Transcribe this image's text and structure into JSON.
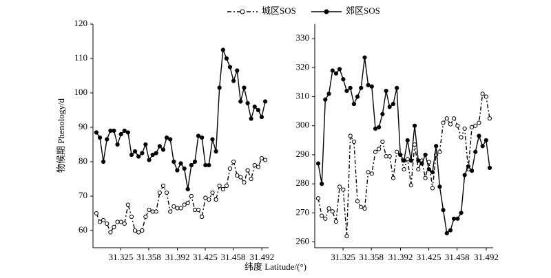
{
  "chart_data": [
    {
      "type": "line",
      "ylabel": "物候期 Phenology/d",
      "xlabel": "纬度 Latitude/(°)",
      "x": [
        31.296,
        31.3002,
        31.3043,
        31.3085,
        31.3127,
        31.3168,
        31.321,
        31.3252,
        31.3293,
        31.3335,
        31.3377,
        31.3418,
        31.346,
        31.3502,
        31.3543,
        31.3585,
        31.3627,
        31.3668,
        31.371,
        31.3752,
        31.3793,
        31.3835,
        31.3877,
        31.3918,
        31.396,
        31.4002,
        31.4043,
        31.4085,
        31.4127,
        31.4168,
        31.421,
        31.4252,
        31.4293,
        31.4335,
        31.4377,
        31.4418,
        31.446,
        31.4502,
        31.4543,
        31.4585,
        31.4627,
        31.4668,
        31.471,
        31.4752,
        31.4793,
        31.4835,
        31.4877,
        31.4918,
        31.496
      ],
      "series": [
        {
          "name": "城区SOS",
          "color": "#000000",
          "line_style": "dashdot",
          "marker": "open",
          "values": [
            65,
            62.5,
            63,
            62,
            59.5,
            61,
            62.5,
            62.5,
            62,
            67.5,
            64,
            60,
            59.5,
            60,
            64,
            66,
            65.5,
            65.5,
            71,
            73,
            71,
            65.5,
            67,
            66.5,
            66.5,
            67.5,
            68,
            70,
            66,
            66,
            64,
            69.5,
            69,
            71,
            69,
            73,
            72,
            73,
            78,
            80,
            76,
            75.5,
            74,
            77.5,
            75,
            79,
            78.5,
            81,
            80.5
          ]
        },
        {
          "name": "郊区SOS",
          "color": "#000000",
          "line_style": "solid",
          "marker": "filled",
          "values": [
            88.5,
            87,
            80,
            86.5,
            89,
            89,
            85,
            88,
            89,
            88.5,
            82,
            83,
            81.5,
            82.5,
            85,
            80.5,
            82,
            82.5,
            84.5,
            83.5,
            87,
            86.5,
            80,
            77.5,
            79.5,
            78,
            72,
            79,
            80,
            87.5,
            87,
            79,
            79,
            86.5,
            83,
            101.5,
            112.5,
            110,
            107.5,
            103.5,
            106.5,
            97.5,
            101.5,
            97,
            92.5,
            96,
            95,
            93,
            97.5
          ]
        }
      ],
      "xlim": [
        31.292,
        31.5
      ],
      "xticks": [
        31.325,
        31.358,
        31.392,
        31.425,
        31.458,
        31.492
      ],
      "ylim": [
        55,
        120
      ],
      "yticks": [
        60,
        70,
        80,
        90,
        100,
        110,
        120
      ]
    },
    {
      "type": "line",
      "x": [
        31.296,
        31.3002,
        31.3043,
        31.3085,
        31.3127,
        31.3168,
        31.321,
        31.3252,
        31.3293,
        31.3335,
        31.3377,
        31.3418,
        31.346,
        31.3502,
        31.3543,
        31.3585,
        31.3627,
        31.3668,
        31.371,
        31.3752,
        31.3793,
        31.3835,
        31.3877,
        31.3918,
        31.396,
        31.4002,
        31.4043,
        31.4085,
        31.4127,
        31.4168,
        31.421,
        31.4252,
        31.4293,
        31.4335,
        31.4377,
        31.4418,
        31.446,
        31.4502,
        31.4543,
        31.4585,
        31.4627,
        31.4668,
        31.471,
        31.4752,
        31.4793,
        31.4835,
        31.4877,
        31.4918,
        31.496
      ],
      "series": [
        {
          "color": "#000000",
          "line_style": "dashdot",
          "marker": "open",
          "values": [
            275,
            269,
            268,
            271.5,
            270.5,
            267,
            279,
            278,
            262,
            296.5,
            294.5,
            274,
            272,
            271.5,
            284,
            283.5,
            291,
            292,
            294.5,
            289.5,
            289.5,
            282,
            291,
            290,
            285,
            288.5,
            279.5,
            293.5,
            285,
            288,
            282,
            287.5,
            278.5,
            290,
            291,
            301,
            302.5,
            300.5,
            302.5,
            300,
            296,
            299,
            285,
            299.5,
            300,
            301,
            311,
            310,
            302.5
          ]
        },
        {
          "color": "#000000",
          "line_style": "solid",
          "marker": "filled",
          "values": [
            287,
            280,
            309,
            311,
            319,
            318,
            319.5,
            316,
            312,
            313,
            307.5,
            310,
            313,
            323.5,
            314,
            313.5,
            299,
            299.5,
            304,
            312,
            306.5,
            307.5,
            313,
            290,
            288,
            295,
            288,
            300,
            288,
            287,
            290,
            285,
            284,
            293,
            279,
            271,
            263,
            264,
            268,
            268,
            270,
            283,
            286,
            284.5,
            291,
            296.5,
            293,
            295,
            285.5
          ]
        }
      ],
      "xlim": [
        31.292,
        31.5
      ],
      "xticks": [
        31.325,
        31.358,
        31.392,
        31.425,
        31.458,
        31.492
      ],
      "ylim": [
        258,
        335
      ],
      "yticks": [
        260,
        270,
        280,
        290,
        300,
        310,
        320,
        330
      ]
    }
  ]
}
